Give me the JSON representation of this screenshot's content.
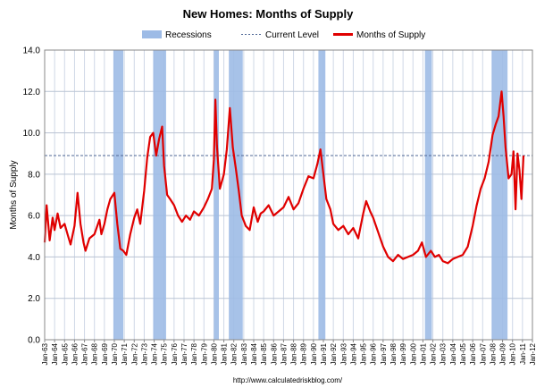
{
  "chart_data": {
    "type": "line",
    "title": "New Homes: Months of Supply",
    "ylabel": "Months of Supply",
    "xlabel": "",
    "source_url": "http://www.calculatedriskblog.com/",
    "ylim": [
      0,
      14
    ],
    "yticks": [
      "0.0",
      "2.0",
      "4.0",
      "6.0",
      "8.0",
      "10.0",
      "12.0",
      "14.0"
    ],
    "xlim": [
      1963.0,
      2012.0
    ],
    "x_tick_labels": [
      "Jan-63",
      "Jan-64",
      "Jan-65",
      "Jan-66",
      "Jan-67",
      "Jan-68",
      "Jan-69",
      "Jan-70",
      "Jan-71",
      "Jan-72",
      "Jan-73",
      "Jan-74",
      "Jan-75",
      "Jan-76",
      "Jan-77",
      "Jan-78",
      "Jan-79",
      "Jan-80",
      "Jan-81",
      "Jan-82",
      "Jan-83",
      "Jan-84",
      "Jan-85",
      "Jan-86",
      "Jan-87",
      "Jan-88",
      "Jan-89",
      "Jan-90",
      "Jan-91",
      "Jan-92",
      "Jan-93",
      "Jan-94",
      "Jan-95",
      "Jan-96",
      "Jan-97",
      "Jan-98",
      "Jan-99",
      "Jan-00",
      "Jan-01",
      "Jan-02",
      "Jan-03",
      "Jan-04",
      "Jan-05",
      "Jan-06",
      "Jan-07",
      "Jan-08",
      "Jan-09",
      "Jan-10",
      "Jan-11",
      "Jan-12"
    ],
    "grid": true,
    "legend_placement": "top",
    "legend": {
      "recessions": "Recessions",
      "current_level": "Current Level",
      "series": "Months of Supply"
    },
    "colors": {
      "series": "#e00000",
      "recession": "#9dbbe6",
      "current_level": "#4f6795",
      "plot_background": "#ffffff",
      "grid": "#cfd8e6"
    },
    "recessions": [
      [
        1969.9,
        1970.9
      ],
      [
        1973.9,
        1975.2
      ],
      [
        1980.0,
        1980.5
      ],
      [
        1981.5,
        1982.9
      ],
      [
        1990.5,
        1991.2
      ],
      [
        2001.2,
        2001.9
      ],
      [
        2007.9,
        2009.5
      ]
    ],
    "current_level": 8.9,
    "series": [
      {
        "name": "Months of Supply",
        "x": [
          1963.0,
          1963.2,
          1963.5,
          1963.8,
          1964.0,
          1964.3,
          1964.6,
          1965.0,
          1965.3,
          1965.6,
          1966.0,
          1966.3,
          1966.6,
          1966.9,
          1967.1,
          1967.5,
          1968.0,
          1968.5,
          1968.7,
          1969.0,
          1969.3,
          1969.6,
          1970.0,
          1970.3,
          1970.6,
          1970.9,
          1971.2,
          1971.6,
          1972.0,
          1972.3,
          1972.6,
          1973.0,
          1973.3,
          1973.6,
          1973.9,
          1974.2,
          1974.5,
          1974.8,
          1975.0,
          1975.3,
          1975.6,
          1976.0,
          1976.4,
          1976.8,
          1977.2,
          1977.6,
          1978.0,
          1978.5,
          1979.0,
          1979.4,
          1979.8,
          1980.0,
          1980.15,
          1980.3,
          1980.6,
          1981.0,
          1981.3,
          1981.6,
          1981.9,
          1982.2,
          1982.5,
          1982.8,
          1983.2,
          1983.6,
          1984.0,
          1984.4,
          1984.7,
          1985.0,
          1985.5,
          1986.0,
          1986.5,
          1987.0,
          1987.5,
          1988.0,
          1988.5,
          1989.0,
          1989.5,
          1990.0,
          1990.4,
          1990.7,
          1991.0,
          1991.3,
          1991.7,
          1992.0,
          1992.5,
          1993.0,
          1993.5,
          1994.0,
          1994.5,
          1995.0,
          1995.3,
          1995.7,
          1996.0,
          1996.5,
          1997.0,
          1997.5,
          1998.0,
          1998.5,
          1999.0,
          1999.5,
          2000.0,
          2000.5,
          2000.9,
          2001.3,
          2001.8,
          2002.2,
          2002.6,
          2003.0,
          2003.5,
          2004.0,
          2004.5,
          2005.0,
          2005.5,
          2006.0,
          2006.4,
          2006.8,
          2007.2,
          2007.6,
          2008.0,
          2008.3,
          2008.6,
          2008.9,
          2009.1,
          2009.3,
          2009.6,
          2009.9,
          2010.1,
          2010.3,
          2010.5,
          2010.7,
          2010.9,
          2011.1
        ],
        "values": [
          4.7,
          6.5,
          4.8,
          5.9,
          5.3,
          6.1,
          5.4,
          5.6,
          5.1,
          4.6,
          5.5,
          7.1,
          5.6,
          4.7,
          4.3,
          4.9,
          5.1,
          5.8,
          5.1,
          5.6,
          6.3,
          6.8,
          7.1,
          5.6,
          4.4,
          4.3,
          4.1,
          5.1,
          5.9,
          6.3,
          5.6,
          7.2,
          8.8,
          9.8,
          10.0,
          8.9,
          9.7,
          10.3,
          8.4,
          7.0,
          6.8,
          6.5,
          6.0,
          5.7,
          6.0,
          5.8,
          6.2,
          6.0,
          6.4,
          6.8,
          7.3,
          8.7,
          11.6,
          9.4,
          7.3,
          8.0,
          9.2,
          11.2,
          9.3,
          8.3,
          7.2,
          6.0,
          5.5,
          5.3,
          6.4,
          5.7,
          6.1,
          6.2,
          6.5,
          6.0,
          6.2,
          6.4,
          6.9,
          6.3,
          6.6,
          7.3,
          7.9,
          7.8,
          8.5,
          9.2,
          8.0,
          6.8,
          6.3,
          5.6,
          5.3,
          5.5,
          5.1,
          5.4,
          4.9,
          6.1,
          6.7,
          6.2,
          5.9,
          5.2,
          4.5,
          4.0,
          3.8,
          4.1,
          3.9,
          4.0,
          4.1,
          4.3,
          4.7,
          4.0,
          4.3,
          4.0,
          4.1,
          3.8,
          3.7,
          3.9,
          4.0,
          4.1,
          4.5,
          5.5,
          6.5,
          7.3,
          7.8,
          8.6,
          9.9,
          10.4,
          10.8,
          12.0,
          10.8,
          9.3,
          7.8,
          8.0,
          9.1,
          6.3,
          9.0,
          8.2,
          6.8,
          8.9
        ]
      }
    ]
  }
}
